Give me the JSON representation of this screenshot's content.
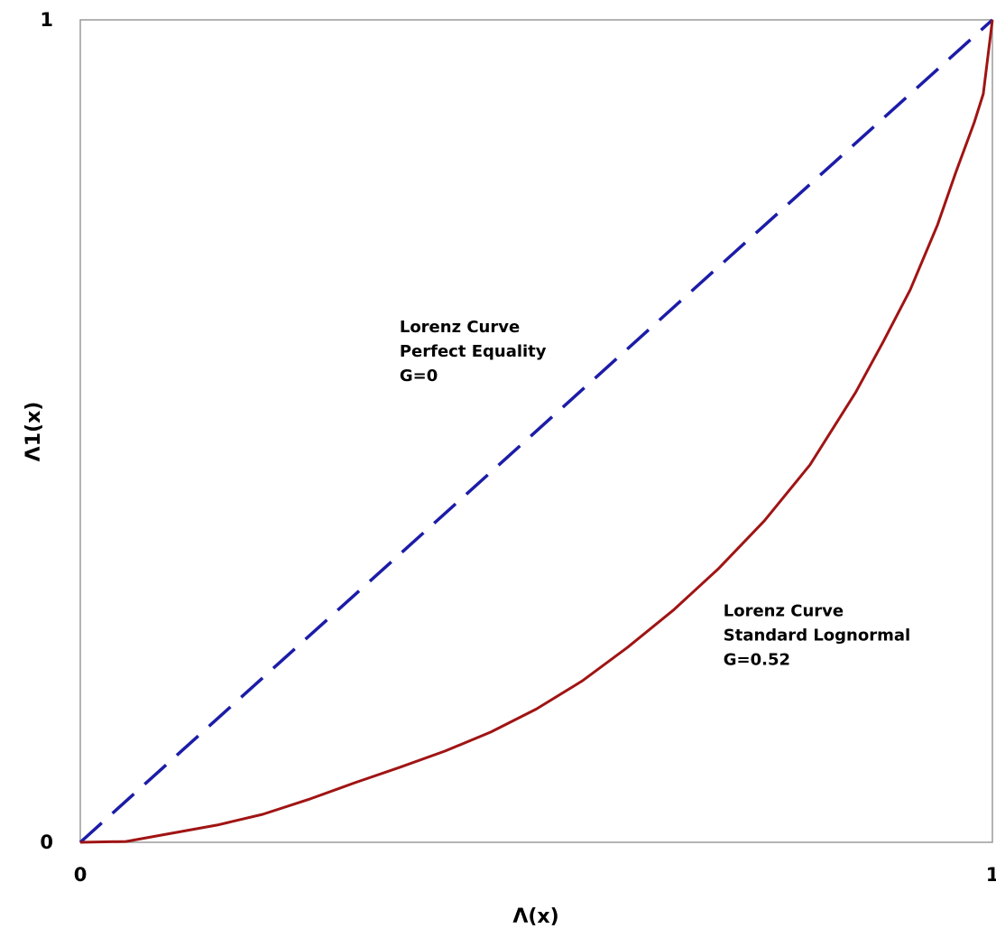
{
  "chart_data": {
    "type": "line",
    "xlabel": "Λ(x)",
    "ylabel": "Λ1(x)",
    "xlim": [
      0,
      1
    ],
    "ylim": [
      0,
      1
    ],
    "grid": false,
    "legend": "none",
    "x_ticks": [
      {
        "value": 0,
        "label": "0"
      },
      {
        "value": 1,
        "label": "1"
      }
    ],
    "y_ticks": [
      {
        "value": 0,
        "label": "0"
      },
      {
        "value": 1,
        "label": "1"
      }
    ],
    "series": [
      {
        "id": "equality",
        "color": "#1c1ca8",
        "dash": "dashed",
        "points": [
          [
            0,
            0
          ],
          [
            1,
            1
          ]
        ]
      },
      {
        "id": "lognormal",
        "color": "#a01414",
        "dash": "solid",
        "points": [
          [
            0,
            0
          ],
          [
            0.05,
            0.001
          ],
          [
            0.1,
            0.011
          ],
          [
            0.15,
            0.021
          ],
          [
            0.2,
            0.034
          ],
          [
            0.25,
            0.052
          ],
          [
            0.3,
            0.072
          ],
          [
            0.35,
            0.091
          ],
          [
            0.4,
            0.111
          ],
          [
            0.45,
            0.134
          ],
          [
            0.5,
            0.162
          ],
          [
            0.55,
            0.196
          ],
          [
            0.6,
            0.237
          ],
          [
            0.65,
            0.282
          ],
          [
            0.7,
            0.333
          ],
          [
            0.75,
            0.391
          ],
          [
            0.8,
            0.459
          ],
          [
            0.85,
            0.547
          ],
          [
            0.88,
            0.608
          ],
          [
            0.91,
            0.672
          ],
          [
            0.94,
            0.751
          ],
          [
            0.96,
            0.815
          ],
          [
            0.98,
            0.875
          ],
          [
            0.99,
            0.91
          ],
          [
            1.0,
            1.0
          ]
        ]
      }
    ],
    "annotations": [
      {
        "id": "equality-label",
        "x": 0.35,
        "y": 0.62,
        "lines": [
          "Lorenz Curve",
          "Perfect Equality",
          "G=0"
        ]
      },
      {
        "id": "lognormal-label",
        "x": 0.705,
        "y": 0.275,
        "lines": [
          "Lorenz Curve",
          "Standard Lognormal",
          "G=0.52"
        ]
      }
    ]
  }
}
